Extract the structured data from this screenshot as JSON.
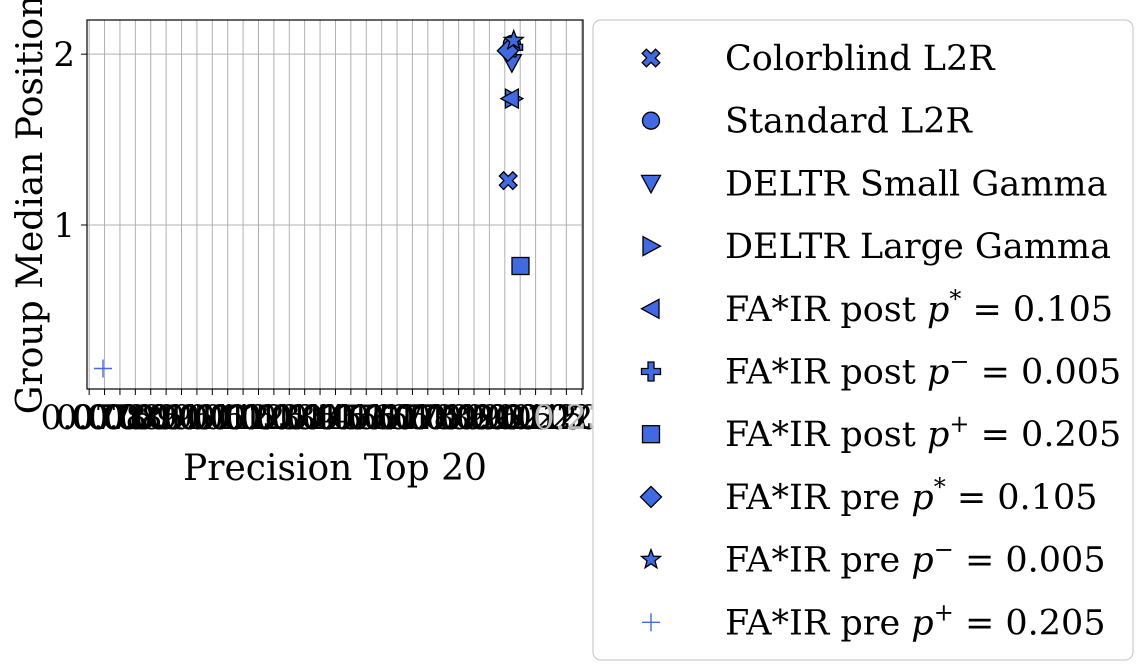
{
  "chart_data": {
    "type": "scatter",
    "xlabel": "Precision Top 20",
    "ylabel": "Group Median Position",
    "x_tick_labels": [
      "0.070",
      "0.075",
      "0.080",
      "0.085",
      "0.090",
      "0.095",
      "0.100",
      "0.105",
      "0.110",
      "0.115",
      "0.120",
      "0.125",
      "0.130",
      "0.135",
      "0.140",
      "0.145",
      "0.150",
      "0.155",
      "0.160",
      "0.165",
      "0.170",
      "0.175",
      "0.180",
      "0.185",
      "0.190",
      "0.195",
      "0.200",
      "0.205",
      "0.210",
      "0.215",
      "0.220",
      "0.225",
      "0.230"
    ],
    "y_ticks": [
      1,
      2
    ],
    "y_tick_labels": [
      "1",
      "2"
    ],
    "xlim": [
      0.0693,
      0.2304
    ],
    "ylim": [
      0.04,
      2.2
    ],
    "grid": true,
    "legend_position": "outside-right",
    "marker_color": "#4169E1",
    "series": [
      {
        "name": "Colorblind L2R",
        "marker": "x-filled",
        "points": [
          {
            "x": 0.2061,
            "y": 1.26
          }
        ]
      },
      {
        "name": "Standard L2R",
        "marker": "circle",
        "points": [
          {
            "x": 0.2073,
            "y": 2.06
          }
        ]
      },
      {
        "name": "DELTR Small Gamma",
        "marker": "triangle-down",
        "points": [
          {
            "x": 0.2073,
            "y": 1.95
          }
        ]
      },
      {
        "name": "DELTR Large Gamma",
        "marker": "triangle-right",
        "points": [
          {
            "x": 0.2078,
            "y": 1.74
          }
        ]
      },
      {
        "name": "FA*IR post p* = 0.105",
        "marker": "triangle-left",
        "points": [
          {
            "x": 0.2068,
            "y": 1.74
          }
        ]
      },
      {
        "name": "FA*IR post p− = 0.005",
        "marker": "plus-filled",
        "points": [
          {
            "x": 0.2077,
            "y": 2.04
          }
        ]
      },
      {
        "name": "FA*IR post p+ = 0.205",
        "marker": "square",
        "points": [
          {
            "x": 0.2101,
            "y": 0.76
          }
        ]
      },
      {
        "name": "FA*IR pre p* = 0.105",
        "marker": "diamond",
        "points": [
          {
            "x": 0.206,
            "y": 2.02
          }
        ]
      },
      {
        "name": "FA*IR pre p− = 0.005",
        "marker": "star",
        "points": [
          {
            "x": 0.2079,
            "y": 2.08
          }
        ]
      },
      {
        "name": "FA*IR pre p+ = 0.205",
        "marker": "plus",
        "points": [
          {
            "x": 0.0745,
            "y": 0.16
          }
        ]
      }
    ]
  },
  "legend": {
    "items": [
      {
        "marker": "x-filled",
        "prefix": "Colorblind L2R",
        "var": "",
        "sup": "",
        "suffix": ""
      },
      {
        "marker": "circle",
        "prefix": "Standard L2R",
        "var": "",
        "sup": "",
        "suffix": ""
      },
      {
        "marker": "triangle-down",
        "prefix": "DELTR Small Gamma",
        "var": "",
        "sup": "",
        "suffix": ""
      },
      {
        "marker": "triangle-right",
        "prefix": "DELTR Large Gamma",
        "var": "",
        "sup": "",
        "suffix": ""
      },
      {
        "marker": "triangle-left",
        "prefix": "FA*IR post ",
        "var": "p",
        "sup": "*",
        "suffix": " = 0.105"
      },
      {
        "marker": "plus-filled",
        "prefix": "FA*IR post ",
        "var": "p",
        "sup": "−",
        "suffix": " = 0.005"
      },
      {
        "marker": "square",
        "prefix": "FA*IR post ",
        "var": "p",
        "sup": "+",
        "suffix": " = 0.205"
      },
      {
        "marker": "diamond",
        "prefix": "FA*IR pre ",
        "var": "p",
        "sup": "*",
        "suffix": " = 0.105"
      },
      {
        "marker": "star",
        "prefix": "FA*IR pre ",
        "var": "p",
        "sup": "−",
        "suffix": " = 0.005"
      },
      {
        "marker": "plus",
        "prefix": "FA*IR pre ",
        "var": "p",
        "sup": "+",
        "suffix": " = 0.205"
      }
    ]
  }
}
